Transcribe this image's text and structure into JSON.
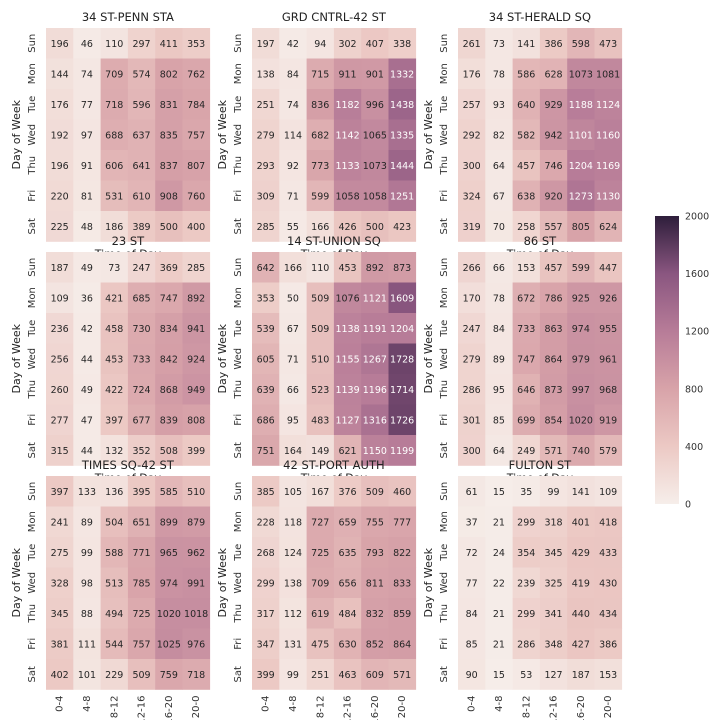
{
  "chart_data": {
    "type": "heatmap",
    "rows": [
      "Sun",
      "Mon",
      "Tue",
      "Wed",
      "Thu",
      "Fri",
      "Sat"
    ],
    "columns": [
      "0-4",
      "4-8",
      "8-12",
      "12-16",
      "16-20",
      "20-0"
    ],
    "xlabel": "Time of Day",
    "ylabel": "Day of Week",
    "colorbar": {
      "min": 0,
      "max": 2000,
      "ticks": [
        0,
        400,
        800,
        1200,
        1600,
        2000
      ]
    },
    "panels": [
      {
        "title": "34 ST-PENN STA",
        "values": [
          [
            196,
            46,
            110,
            297,
            411,
            353
          ],
          [
            144,
            74,
            709,
            574,
            802,
            762
          ],
          [
            176,
            77,
            718,
            596,
            831,
            784
          ],
          [
            192,
            97,
            688,
            637,
            835,
            757
          ],
          [
            196,
            91,
            606,
            641,
            837,
            807
          ],
          [
            220,
            81,
            531,
            610,
            908,
            760
          ],
          [
            225,
            48,
            186,
            389,
            500,
            400
          ]
        ]
      },
      {
        "title": "GRD CNTRL-42 ST",
        "values": [
          [
            197,
            42,
            94,
            302,
            407,
            338
          ],
          [
            138,
            84,
            715,
            911,
            901,
            1332
          ],
          [
            251,
            74,
            836,
            1182,
            996,
            1438
          ],
          [
            279,
            114,
            682,
            1142,
            1065,
            1335
          ],
          [
            293,
            92,
            773,
            1133,
            1073,
            1444
          ],
          [
            309,
            71,
            599,
            1058,
            1058,
            1251
          ],
          [
            285,
            55,
            166,
            426,
            500,
            423
          ]
        ]
      },
      {
        "title": "34 ST-HERALD SQ",
        "values": [
          [
            261,
            73,
            141,
            386,
            598,
            473
          ],
          [
            176,
            78,
            586,
            628,
            1073,
            1081
          ],
          [
            257,
            93,
            640,
            929,
            1188,
            1124
          ],
          [
            292,
            82,
            582,
            942,
            1101,
            1160
          ],
          [
            300,
            64,
            457,
            746,
            1204,
            1169
          ],
          [
            324,
            67,
            638,
            920,
            1273,
            1130
          ],
          [
            319,
            70,
            258,
            557,
            805,
            624
          ]
        ]
      },
      {
        "title": "23 ST",
        "values": [
          [
            187,
            49,
            73,
            247,
            369,
            285
          ],
          [
            109,
            36,
            421,
            685,
            747,
            892
          ],
          [
            236,
            42,
            458,
            730,
            834,
            941
          ],
          [
            256,
            44,
            453,
            733,
            842,
            924
          ],
          [
            260,
            49,
            422,
            724,
            868,
            949
          ],
          [
            277,
            47,
            397,
            677,
            839,
            808
          ],
          [
            315,
            44,
            132,
            352,
            508,
            399
          ]
        ]
      },
      {
        "title": "14 ST-UNION SQ",
        "values": [
          [
            642,
            166,
            110,
            453,
            892,
            873
          ],
          [
            353,
            50,
            509,
            1076,
            1121,
            1609
          ],
          [
            539,
            67,
            509,
            1138,
            1191,
            1204
          ],
          [
            605,
            71,
            510,
            1155,
            1267,
            1728
          ],
          [
            639,
            66,
            523,
            1139,
            1196,
            1714
          ],
          [
            686,
            95,
            483,
            1127,
            1316,
            1726
          ],
          [
            751,
            164,
            149,
            621,
            1150,
            1199
          ]
        ]
      },
      {
        "title": "86 ST",
        "values": [
          [
            266,
            66,
            153,
            457,
            599,
            447
          ],
          [
            170,
            78,
            672,
            786,
            925,
            926
          ],
          [
            247,
            84,
            733,
            863,
            974,
            955
          ],
          [
            279,
            89,
            747,
            864,
            979,
            961
          ],
          [
            286,
            95,
            646,
            873,
            997,
            968
          ],
          [
            301,
            85,
            699,
            854,
            1020,
            919
          ],
          [
            300,
            64,
            249,
            571,
            740,
            579
          ]
        ]
      },
      {
        "title": "TIMES SQ-42 ST",
        "values": [
          [
            397,
            133,
            136,
            395,
            585,
            510
          ],
          [
            241,
            89,
            504,
            651,
            899,
            879
          ],
          [
            275,
            99,
            588,
            771,
            965,
            962
          ],
          [
            328,
            98,
            513,
            785,
            974,
            991
          ],
          [
            345,
            88,
            494,
            725,
            1020,
            1018
          ],
          [
            381,
            111,
            544,
            757,
            1025,
            976
          ],
          [
            402,
            101,
            229,
            509,
            759,
            718
          ]
        ]
      },
      {
        "title": "42 ST-PORT AUTH",
        "values": [
          [
            385,
            105,
            167,
            376,
            509,
            460
          ],
          [
            228,
            118,
            727,
            659,
            755,
            777
          ],
          [
            268,
            124,
            725,
            635,
            793,
            822
          ],
          [
            299,
            138,
            709,
            656,
            811,
            833
          ],
          [
            317,
            112,
            619,
            484,
            832,
            859
          ],
          [
            347,
            131,
            475,
            630,
            852,
            864
          ],
          [
            399,
            99,
            251,
            463,
            609,
            571
          ]
        ]
      },
      {
        "title": "FULTON ST",
        "values": [
          [
            61,
            15,
            35,
            99,
            141,
            109
          ],
          [
            37,
            21,
            299,
            318,
            401,
            418
          ],
          [
            72,
            24,
            354,
            345,
            429,
            433
          ],
          [
            77,
            22,
            239,
            325,
            419,
            430
          ],
          [
            84,
            21,
            299,
            341,
            440,
            434
          ],
          [
            85,
            21,
            286,
            348,
            427,
            386
          ],
          [
            90,
            15,
            53,
            127,
            187,
            153
          ]
        ]
      }
    ]
  }
}
